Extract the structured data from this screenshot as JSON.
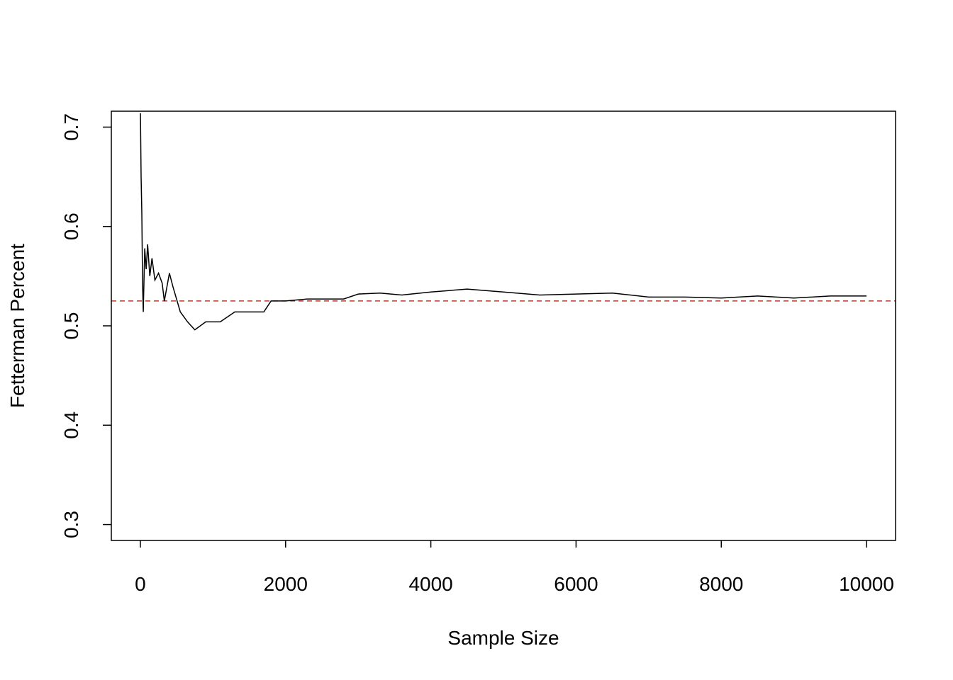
{
  "chart_data": {
    "type": "line",
    "x_label": "Sample Size",
    "y_label": "Fetterman Percent",
    "x": [
      1,
      10,
      20,
      30,
      40,
      60,
      80,
      100,
      130,
      160,
      200,
      250,
      300,
      330,
      400,
      450,
      550,
      650,
      750,
      900,
      1100,
      1300,
      1500,
      1700,
      1800,
      2000,
      2300,
      2800,
      3000,
      3300,
      3600,
      4000,
      4500,
      5000,
      5500,
      6000,
      6500,
      7000,
      7500,
      8000,
      8500,
      9000,
      9500,
      10000
    ],
    "series": [
      {
        "color": "#000000",
        "values": [
          0.714,
          0.65,
          0.614,
          0.543,
          0.514,
          0.578,
          0.557,
          0.582,
          0.55,
          0.568,
          0.546,
          0.553,
          0.543,
          0.525,
          0.553,
          0.539,
          0.514,
          0.504,
          0.496,
          0.504,
          0.504,
          0.514,
          0.514,
          0.514,
          0.525,
          0.525,
          0.527,
          0.527,
          0.532,
          0.533,
          0.531,
          0.534,
          0.537,
          0.534,
          0.531,
          0.532,
          0.533,
          0.529,
          0.529,
          0.528,
          0.53,
          0.528,
          0.53,
          0.53
        ]
      }
    ],
    "reference_line": {
      "value": 0.525,
      "color": "#c0392b",
      "dashed": true
    },
    "xlim": [
      -400,
      10400
    ],
    "ylim": [
      0.284,
      0.716
    ],
    "xticks": [
      0,
      2000,
      4000,
      6000,
      8000,
      10000
    ],
    "yticks": [
      0.3,
      0.4,
      0.5,
      0.6,
      0.7
    ],
    "grid": false
  }
}
